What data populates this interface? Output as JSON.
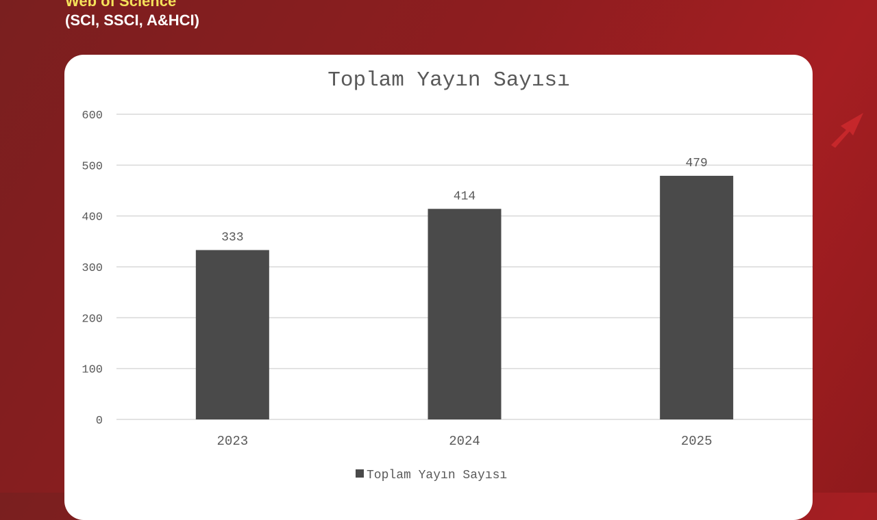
{
  "header": {
    "line1": "Web of Science",
    "line2": "(SCI, SSCI, A&HCI)"
  },
  "colors": {
    "bar": "#4a4a4a",
    "grid": "#d9d9d9",
    "background": "#8e1d1f",
    "heading_accent": "#f5e25a"
  },
  "chart_data": {
    "type": "bar",
    "title": "Toplam Yayın Sayısı",
    "categories": [
      "2023",
      "2024",
      "2025"
    ],
    "series": [
      {
        "name": "Toplam Yayın Sayısı",
        "values": [
          333,
          414,
          479
        ]
      }
    ],
    "data_labels": [
      "333",
      "414",
      "479"
    ],
    "ylim": [
      0,
      600
    ],
    "yticks": [
      "0",
      "100",
      "200",
      "300",
      "400",
      "500",
      "600"
    ],
    "grid": true,
    "legend": "bottom"
  }
}
